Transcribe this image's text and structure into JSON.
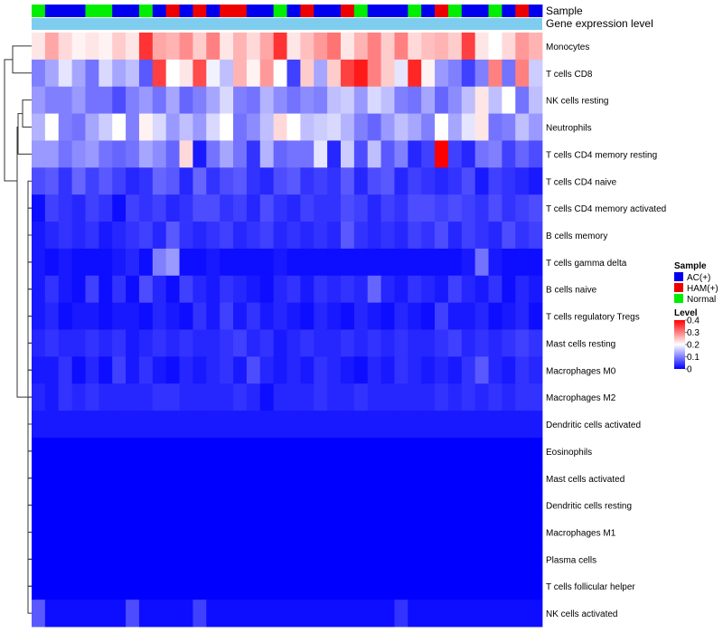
{
  "chart_data": {
    "type": "heatmap",
    "annotation_tracks": [
      "Sample",
      "Gene expression level"
    ],
    "rows": [
      "Monocytes",
      "T cells CD8",
      "NK cells resting",
      "Neutrophils",
      "T cells CD4 memory resting",
      "T cells CD4 naive",
      "T cells CD4 memory activated",
      "B cells memory",
      "T cells gamma delta",
      "B cells naive",
      "T cells regulatory  Tregs",
      "Mast cells resting",
      "Macrophages M0",
      "Macrophages M2",
      "Dendritic cells activated",
      "Eosinophils",
      "Mast cells activated",
      "Dendritic cells resting",
      "Macrophages M1",
      "Plasma cells",
      "T cells follicular helper",
      "NK cells activated"
    ],
    "sample_groups": [
      "N",
      "A",
      "A",
      "A",
      "N",
      "N",
      "A",
      "A",
      "N",
      "A",
      "H",
      "A",
      "H",
      "A",
      "H",
      "H",
      "A",
      "A",
      "N",
      "A",
      "H",
      "A",
      "A",
      "H",
      "N",
      "A",
      "A",
      "A",
      "N",
      "A",
      "H",
      "N",
      "A",
      "A",
      "N",
      "A",
      "H",
      "A"
    ],
    "values": [
      [
        0.22,
        0.27,
        0.23,
        0.21,
        0.22,
        0.21,
        0.24,
        0.22,
        0.36,
        0.27,
        0.26,
        0.29,
        0.24,
        0.3,
        0.22,
        0.26,
        0.23,
        0.27,
        0.36,
        0.22,
        0.25,
        0.28,
        0.31,
        0.22,
        0.26,
        0.3,
        0.24,
        0.3,
        0.23,
        0.25,
        0.26,
        0.24,
        0.35,
        0.22,
        0.2,
        0.23,
        0.28,
        0.26
      ],
      [
        0.1,
        0.13,
        0.18,
        0.13,
        0.09,
        0.17,
        0.13,
        0.15,
        0.07,
        0.35,
        0.2,
        0.22,
        0.34,
        0.19,
        0.15,
        0.26,
        0.21,
        0.28,
        0.2,
        0.05,
        0.24,
        0.13,
        0.24,
        0.35,
        0.38,
        0.3,
        0.24,
        0.18,
        0.37,
        0.21,
        0.12,
        0.1,
        0.05,
        0.1,
        0.3,
        0.09,
        0.3,
        0.16
      ],
      [
        0.12,
        0.1,
        0.1,
        0.12,
        0.09,
        0.09,
        0.06,
        0.1,
        0.12,
        0.09,
        0.13,
        0.08,
        0.1,
        0.13,
        0.17,
        0.1,
        0.09,
        0.14,
        0.11,
        0.09,
        0.11,
        0.1,
        0.15,
        0.16,
        0.12,
        0.17,
        0.15,
        0.1,
        0.09,
        0.13,
        0.08,
        0.11,
        0.15,
        0.22,
        0.15,
        0.2,
        0.09,
        0.15
      ],
      [
        0.14,
        0.2,
        0.1,
        0.09,
        0.13,
        0.16,
        0.2,
        0.1,
        0.21,
        0.17,
        0.12,
        0.15,
        0.12,
        0.17,
        0.2,
        0.09,
        0.11,
        0.15,
        0.23,
        0.2,
        0.15,
        0.16,
        0.17,
        0.14,
        0.1,
        0.08,
        0.12,
        0.15,
        0.13,
        0.1,
        0.2,
        0.13,
        0.18,
        0.22,
        0.09,
        0.1,
        0.15,
        0.12
      ],
      [
        0.12,
        0.12,
        0.09,
        0.11,
        0.12,
        0.09,
        0.08,
        0.09,
        0.13,
        0.11,
        0.08,
        0.23,
        0.02,
        0.09,
        0.13,
        0.09,
        0.04,
        0.14,
        0.08,
        0.09,
        0.09,
        0.18,
        0.03,
        0.16,
        0.06,
        0.15,
        0.07,
        0.1,
        0.03,
        0.05,
        0.4,
        0.05,
        0.03,
        0.09,
        0.1,
        0.05,
        0.08,
        0.06
      ],
      [
        0.06,
        0.07,
        0.04,
        0.08,
        0.05,
        0.07,
        0.05,
        0.03,
        0.04,
        0.08,
        0.07,
        0.03,
        0.08,
        0.04,
        0.06,
        0.07,
        0.04,
        0.03,
        0.06,
        0.07,
        0.04,
        0.05,
        0.04,
        0.07,
        0.03,
        0.06,
        0.07,
        0.03,
        0.05,
        0.04,
        0.03,
        0.04,
        0.06,
        0.02,
        0.05,
        0.04,
        0.03,
        0.02
      ],
      [
        0.01,
        0.05,
        0.04,
        0.03,
        0.05,
        0.04,
        0.01,
        0.05,
        0.04,
        0.05,
        0.03,
        0.04,
        0.06,
        0.06,
        0.04,
        0.05,
        0.03,
        0.06,
        0.04,
        0.03,
        0.05,
        0.04,
        0.04,
        0.06,
        0.05,
        0.03,
        0.05,
        0.04,
        0.06,
        0.06,
        0.05,
        0.06,
        0.05,
        0.04,
        0.06,
        0.04,
        0.05,
        0.06
      ],
      [
        0.02,
        0.03,
        0.04,
        0.03,
        0.04,
        0.02,
        0.03,
        0.04,
        0.05,
        0.03,
        0.07,
        0.04,
        0.03,
        0.04,
        0.05,
        0.03,
        0.04,
        0.05,
        0.03,
        0.04,
        0.03,
        0.04,
        0.03,
        0.07,
        0.04,
        0.03,
        0.04,
        0.03,
        0.05,
        0.04,
        0.06,
        0.03,
        0.05,
        0.04,
        0.03,
        0.06,
        0.04,
        0.05
      ],
      [
        0.02,
        0.01,
        0.02,
        0.01,
        0.01,
        0.01,
        0.02,
        0.03,
        0.01,
        0.1,
        0.12,
        0.01,
        0.01,
        0.02,
        0.01,
        0.01,
        0.01,
        0.01,
        0.02,
        0.01,
        0.01,
        0.01,
        0.01,
        0.01,
        0.01,
        0.01,
        0.01,
        0.01,
        0.01,
        0.01,
        0.01,
        0.01,
        0.02,
        0.09,
        0.02,
        0.01,
        0.01,
        0.01
      ],
      [
        0.02,
        0.04,
        0.02,
        0.01,
        0.05,
        0.01,
        0.04,
        0.01,
        0.06,
        0.03,
        0.01,
        0.05,
        0.03,
        0.02,
        0.04,
        0.03,
        0.02,
        0.01,
        0.03,
        0.04,
        0.02,
        0.04,
        0.03,
        0.04,
        0.03,
        0.08,
        0.03,
        0.02,
        0.04,
        0.03,
        0.02,
        0.05,
        0.03,
        0.02,
        0.04,
        0.01,
        0.03,
        0.02
      ],
      [
        0.02,
        0.03,
        0.01,
        0.02,
        0.02,
        0.01,
        0.02,
        0.02,
        0.01,
        0.03,
        0.02,
        0.01,
        0.04,
        0.02,
        0.05,
        0.02,
        0.04,
        0.02,
        0.03,
        0.02,
        0.01,
        0.03,
        0.02,
        0.01,
        0.03,
        0.02,
        0.01,
        0.03,
        0.02,
        0.01,
        0.05,
        0.02,
        0.02,
        0.03,
        0.01,
        0.02,
        0.03,
        0.01
      ],
      [
        0.03,
        0.04,
        0.03,
        0.03,
        0.04,
        0.03,
        0.04,
        0.02,
        0.03,
        0.04,
        0.03,
        0.04,
        0.03,
        0.03,
        0.04,
        0.05,
        0.03,
        0.04,
        0.02,
        0.03,
        0.04,
        0.03,
        0.03,
        0.04,
        0.03,
        0.04,
        0.03,
        0.04,
        0.03,
        0.03,
        0.04,
        0.05,
        0.03,
        0.04,
        0.03,
        0.04,
        0.05,
        0.04
      ],
      [
        0.02,
        0.02,
        0.04,
        0.01,
        0.03,
        0.01,
        0.05,
        0.02,
        0.04,
        0.02,
        0.01,
        0.03,
        0.02,
        0.03,
        0.04,
        0.02,
        0.06,
        0.03,
        0.02,
        0.03,
        0.02,
        0.04,
        0.03,
        0.02,
        0.01,
        0.03,
        0.02,
        0.04,
        0.03,
        0.02,
        0.03,
        0.02,
        0.04,
        0.07,
        0.03,
        0.02,
        0.04,
        0.03
      ],
      [
        0.03,
        0.02,
        0.04,
        0.03,
        0.04,
        0.03,
        0.03,
        0.03,
        0.03,
        0.04,
        0.04,
        0.03,
        0.03,
        0.03,
        0.03,
        0.04,
        0.03,
        0.01,
        0.03,
        0.03,
        0.03,
        0.04,
        0.03,
        0.03,
        0.04,
        0.03,
        0.03,
        0.03,
        0.03,
        0.03,
        0.04,
        0.03,
        0.04,
        0.03,
        0.04,
        0.03,
        0.04,
        0.04
      ],
      [
        0.02,
        0.02,
        0.02,
        0.02,
        0.02,
        0.02,
        0.02,
        0.02,
        0.02,
        0.02,
        0.02,
        0.02,
        0.02,
        0.02,
        0.02,
        0.02,
        0.02,
        0.02,
        0.02,
        0.02,
        0.02,
        0.02,
        0.02,
        0.02,
        0.02,
        0.02,
        0.02,
        0.02,
        0.02,
        0.02,
        0.02,
        0.02,
        0.02,
        0.02,
        0.02,
        0.02,
        0.02,
        0.02
      ],
      [
        0,
        0,
        0,
        0,
        0,
        0,
        0,
        0,
        0,
        0,
        0,
        0,
        0,
        0,
        0,
        0,
        0,
        0,
        0,
        0,
        0,
        0,
        0,
        0,
        0,
        0,
        0,
        0,
        0,
        0,
        0,
        0,
        0,
        0,
        0,
        0,
        0,
        0
      ],
      [
        0,
        0,
        0,
        0,
        0,
        0,
        0,
        0,
        0,
        0,
        0,
        0,
        0,
        0,
        0,
        0,
        0,
        0,
        0,
        0,
        0,
        0,
        0,
        0,
        0,
        0,
        0,
        0,
        0,
        0,
        0,
        0,
        0,
        0,
        0,
        0,
        0,
        0
      ],
      [
        0,
        0,
        0,
        0,
        0,
        0,
        0,
        0,
        0,
        0,
        0,
        0,
        0,
        0,
        0,
        0,
        0,
        0,
        0,
        0,
        0,
        0,
        0,
        0,
        0,
        0,
        0,
        0,
        0,
        0,
        0,
        0,
        0,
        0,
        0,
        0,
        0,
        0
      ],
      [
        0,
        0,
        0,
        0,
        0,
        0,
        0,
        0,
        0,
        0,
        0,
        0,
        0,
        0,
        0,
        0,
        0,
        0,
        0,
        0,
        0,
        0,
        0,
        0,
        0,
        0,
        0,
        0,
        0,
        0,
        0,
        0,
        0,
        0,
        0,
        0,
        0,
        0
      ],
      [
        0,
        0,
        0,
        0,
        0,
        0,
        0,
        0,
        0,
        0,
        0,
        0,
        0,
        0,
        0,
        0,
        0,
        0,
        0,
        0,
        0,
        0,
        0,
        0,
        0,
        0,
        0,
        0,
        0,
        0,
        0,
        0,
        0,
        0,
        0,
        0,
        0,
        0
      ],
      [
        0,
        0,
        0,
        0,
        0,
        0,
        0,
        0,
        0,
        0,
        0,
        0,
        0,
        0,
        0,
        0,
        0,
        0,
        0,
        0,
        0,
        0,
        0,
        0,
        0,
        0,
        0,
        0,
        0,
        0,
        0,
        0,
        0,
        0,
        0,
        0,
        0,
        0
      ],
      [
        0.07,
        0.01,
        0.01,
        0.01,
        0.01,
        0.01,
        0.01,
        0.06,
        0.01,
        0.01,
        0.01,
        0.01,
        0.05,
        0.01,
        0.01,
        0.01,
        0.01,
        0.01,
        0.01,
        0.01,
        0.01,
        0.01,
        0.01,
        0.01,
        0.01,
        0.01,
        0.01,
        0.04,
        0.01,
        0.01,
        0.01,
        0.01,
        0.01,
        0.01,
        0.01,
        0.01,
        0.01,
        0.01
      ]
    ],
    "legend": {
      "sample_title": "Sample",
      "sample_groups": [
        {
          "key": "A",
          "label": "AC(+)",
          "color": "#0000ee"
        },
        {
          "key": "H",
          "label": "HAM(+)",
          "color": "#ee0000"
        },
        {
          "key": "N",
          "label": "Normal",
          "color": "#00ee00"
        }
      ],
      "level_title": "Level",
      "level_ticks": [
        "0.4",
        "0.3",
        "0.2",
        "0.1",
        "0"
      ],
      "level_range": [
        0,
        0.4
      ],
      "level_colors": {
        "low": "#0000ff",
        "mid": "#ffffff",
        "high": "#ff0000"
      }
    },
    "gene_expression_color": "#7fcdee"
  }
}
